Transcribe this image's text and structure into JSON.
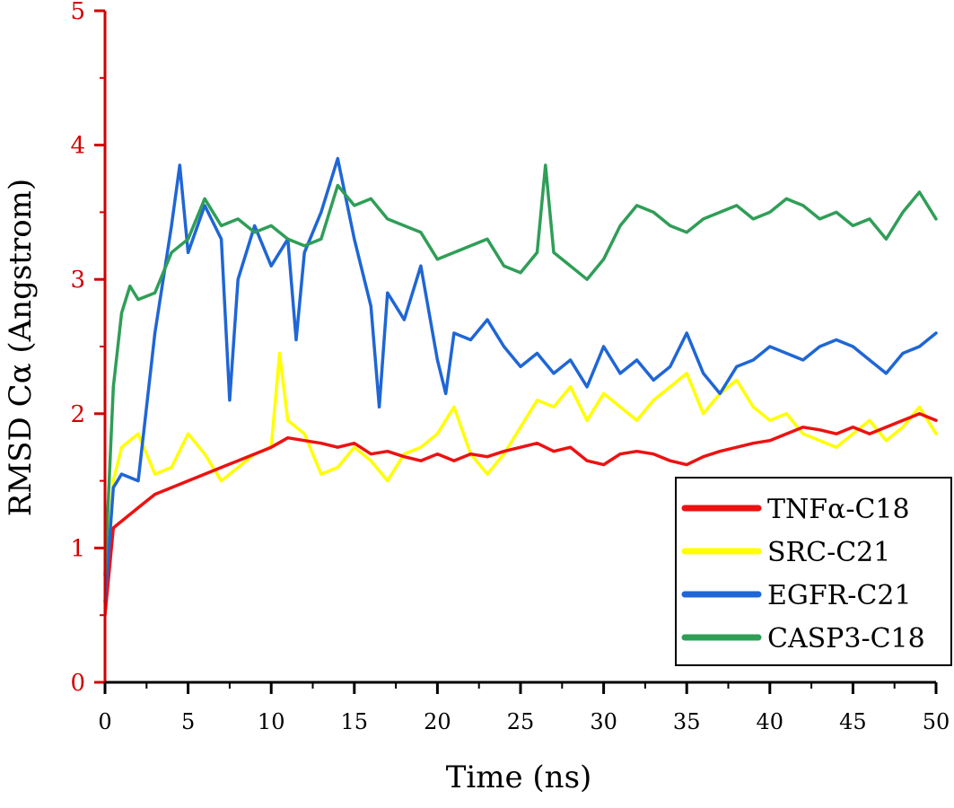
{
  "chart_data": {
    "type": "line",
    "xlabel": "Time (ns)",
    "ylabel": "RMSD Cα (Angstrom)",
    "xlim": [
      0,
      50
    ],
    "ylim": [
      0,
      5
    ],
    "x_ticks": [
      "0",
      "5",
      "10",
      "15",
      "20",
      "25",
      "30",
      "35",
      "40",
      "45",
      "50"
    ],
    "y_ticks": [
      "0",
      "1",
      "2",
      "3",
      "4",
      "5"
    ],
    "grid": false,
    "legend_position": "bottom-right",
    "series": [
      {
        "name": "TNFα-C18",
        "color": "#ee1111",
        "x": [
          0,
          0.5,
          1,
          2,
          3,
          4,
          5,
          6,
          7,
          8,
          9,
          10,
          11,
          12,
          13,
          14,
          15,
          16,
          17,
          18,
          19,
          20,
          21,
          22,
          23,
          24,
          25,
          26,
          27,
          28,
          29,
          30,
          31,
          32,
          33,
          34,
          35,
          36,
          37,
          38,
          39,
          40,
          41,
          42,
          43,
          44,
          45,
          46,
          47,
          48,
          49,
          50
        ],
        "y": [
          0.5,
          1.15,
          1.2,
          1.3,
          1.4,
          1.45,
          1.5,
          1.55,
          1.6,
          1.65,
          1.7,
          1.75,
          1.82,
          1.8,
          1.78,
          1.75,
          1.78,
          1.7,
          1.72,
          1.68,
          1.65,
          1.7,
          1.65,
          1.7,
          1.68,
          1.72,
          1.75,
          1.78,
          1.72,
          1.75,
          1.65,
          1.62,
          1.7,
          1.72,
          1.7,
          1.65,
          1.62,
          1.68,
          1.72,
          1.75,
          1.78,
          1.8,
          1.85,
          1.9,
          1.88,
          1.85,
          1.9,
          1.85,
          1.9,
          1.95,
          2.0,
          1.95
        ]
      },
      {
        "name": "SRC-C21",
        "color": "#ffff00",
        "x": [
          0,
          0.5,
          1,
          2,
          3,
          4,
          5,
          6,
          7,
          8,
          9,
          10,
          10.5,
          11,
          12,
          13,
          14,
          15,
          16,
          17,
          18,
          19,
          20,
          21,
          22,
          23,
          24,
          25,
          26,
          27,
          28,
          29,
          30,
          31,
          32,
          33,
          34,
          35,
          36,
          37,
          38,
          39,
          40,
          41,
          42,
          43,
          44,
          45,
          46,
          47,
          48,
          49,
          50
        ],
        "y": [
          0.6,
          1.5,
          1.75,
          1.85,
          1.55,
          1.6,
          1.85,
          1.7,
          1.5,
          1.6,
          1.7,
          1.75,
          2.45,
          1.95,
          1.85,
          1.55,
          1.6,
          1.75,
          1.65,
          1.5,
          1.7,
          1.75,
          1.85,
          2.05,
          1.7,
          1.55,
          1.7,
          1.9,
          2.1,
          2.05,
          2.2,
          1.95,
          2.15,
          2.05,
          1.95,
          2.1,
          2.2,
          2.3,
          2.0,
          2.15,
          2.25,
          2.05,
          1.95,
          2.0,
          1.85,
          1.8,
          1.75,
          1.85,
          1.95,
          1.8,
          1.9,
          2.05,
          1.85
        ]
      },
      {
        "name": "EGFR-C21",
        "color": "#1f66d6",
        "x": [
          0,
          0.5,
          1,
          2,
          3,
          4,
          4.5,
          5,
          6,
          7,
          7.5,
          8,
          9,
          10,
          11,
          11.5,
          12,
          13,
          14,
          15,
          16,
          16.5,
          17,
          18,
          19,
          20,
          20.5,
          21,
          22,
          23,
          24,
          25,
          26,
          27,
          28,
          29,
          30,
          31,
          32,
          33,
          34,
          35,
          36,
          37,
          38,
          39,
          40,
          41,
          42,
          43,
          44,
          45,
          46,
          47,
          48,
          49,
          50
        ],
        "y": [
          0.6,
          1.45,
          1.55,
          1.5,
          2.6,
          3.4,
          3.85,
          3.2,
          3.55,
          3.3,
          2.1,
          3.0,
          3.4,
          3.1,
          3.3,
          2.55,
          3.2,
          3.5,
          3.9,
          3.3,
          2.8,
          2.05,
          2.9,
          2.7,
          3.1,
          2.4,
          2.15,
          2.6,
          2.55,
          2.7,
          2.5,
          2.35,
          2.45,
          2.3,
          2.4,
          2.2,
          2.5,
          2.3,
          2.4,
          2.25,
          2.35,
          2.6,
          2.3,
          2.15,
          2.35,
          2.4,
          2.5,
          2.45,
          2.4,
          2.5,
          2.55,
          2.5,
          2.4,
          2.3,
          2.45,
          2.5,
          2.6
        ]
      },
      {
        "name": "CASP3-C18",
        "color": "#2f9e57",
        "x": [
          0,
          0.5,
          1,
          1.5,
          2,
          3,
          4,
          5,
          6,
          7,
          8,
          9,
          10,
          11,
          12,
          13,
          14,
          15,
          16,
          17,
          18,
          19,
          20,
          21,
          22,
          23,
          24,
          25,
          26,
          26.5,
          27,
          28,
          29,
          30,
          31,
          32,
          33,
          34,
          35,
          36,
          37,
          38,
          39,
          40,
          41,
          42,
          43,
          44,
          45,
          46,
          47,
          48,
          49,
          50
        ],
        "y": [
          0.8,
          2.2,
          2.75,
          2.95,
          2.85,
          2.9,
          3.2,
          3.3,
          3.6,
          3.4,
          3.45,
          3.35,
          3.4,
          3.3,
          3.25,
          3.3,
          3.7,
          3.55,
          3.6,
          3.45,
          3.4,
          3.35,
          3.15,
          3.2,
          3.25,
          3.3,
          3.1,
          3.05,
          3.2,
          3.85,
          3.2,
          3.1,
          3.0,
          3.15,
          3.4,
          3.55,
          3.5,
          3.4,
          3.35,
          3.45,
          3.5,
          3.55,
          3.45,
          3.5,
          3.6,
          3.55,
          3.45,
          3.5,
          3.4,
          3.45,
          3.3,
          3.5,
          3.65,
          3.45
        ]
      }
    ]
  }
}
